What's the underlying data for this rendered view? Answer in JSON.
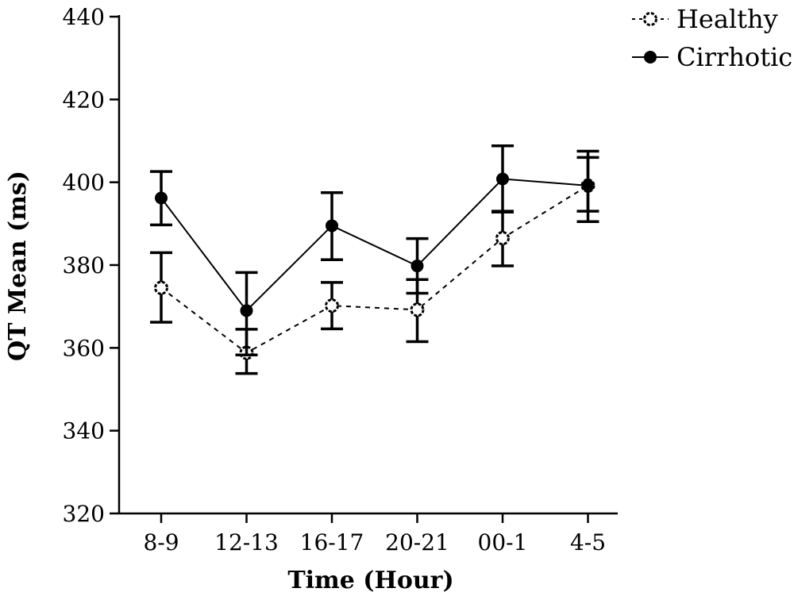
{
  "chart_data": {
    "type": "line",
    "title": "",
    "xlabel": "Time (Hour)",
    "ylabel": "QT Mean (ms)",
    "categories": [
      "8-9",
      "12-13",
      "16-17",
      "20-21",
      "00-1",
      "4-5"
    ],
    "ylim": [
      320,
      440
    ],
    "yticks": [
      320,
      340,
      360,
      380,
      400,
      420,
      440
    ],
    "grid": false,
    "legend_position": "top-right",
    "series": [
      {
        "name": "Healthy",
        "style": "dashed",
        "marker": "open-circle",
        "color": "#000000",
        "values": [
          374.5,
          358.8,
          370.2,
          369.2,
          386.5,
          399.2
        ],
        "error_upper": [
          383,
          364.5,
          375.8,
          376.5,
          393,
          406
        ],
        "error_lower": [
          366.2,
          353.8,
          364.6,
          361.5,
          379.8,
          393
        ]
      },
      {
        "name": "Cirrhotic",
        "style": "solid",
        "marker": "filled-circle",
        "color": "#000000",
        "values": [
          396.2,
          369,
          389.5,
          379.8,
          400.8,
          399.2
        ],
        "error_upper": [
          402.6,
          378.2,
          397.5,
          386.4,
          408.8,
          407.5
        ],
        "error_lower": [
          389.7,
          358.3,
          381.3,
          373.2,
          392.8,
          390.5
        ]
      }
    ]
  }
}
